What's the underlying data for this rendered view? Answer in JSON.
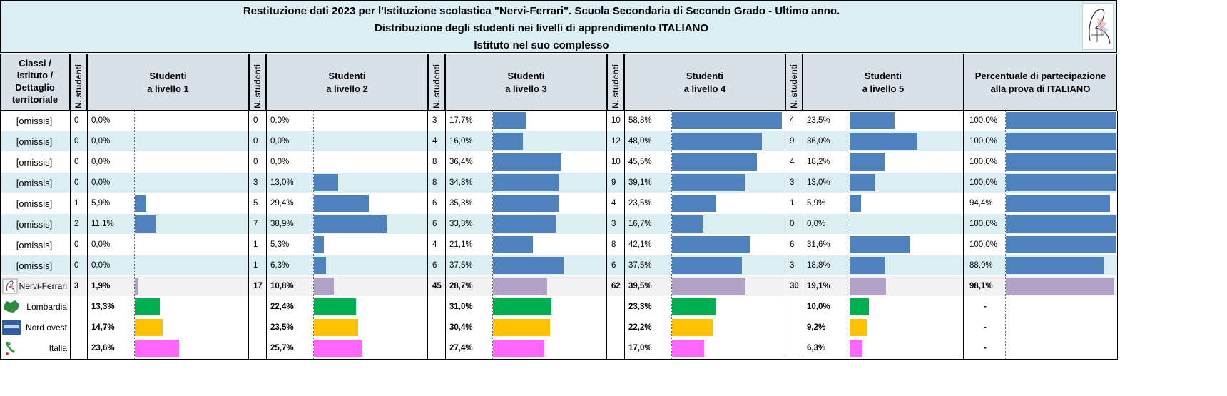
{
  "title": {
    "line1": "Restituzione dati 2023 per l'Istituzione scolastica \"Nervi-Ferrari\". Scuola Secondaria di Secondo Grado - Ultimo anno.",
    "line2": "Distribuzione degli studenti nei livelli di apprendimento ITALIANO",
    "line3": "Istituto nel suo complesso"
  },
  "headers": {
    "first_col": [
      "Classi /",
      "Istituto /",
      "Dettaglio",
      "territoriale"
    ],
    "n_studenti": "N. studenti",
    "levels": [
      [
        "Studenti",
        "a livello 1"
      ],
      [
        "Studenti",
        "a livello 2"
      ],
      [
        "Studenti",
        "a livello 3"
      ],
      [
        "Studenti",
        "a livello 4"
      ],
      [
        "Studenti",
        "a livello 5"
      ]
    ],
    "participation": [
      "Percentuale di partecipazione",
      "alla prova di ITALIANO"
    ]
  },
  "colors": {
    "class_bar": "#4f81bd",
    "school_bar": "#b3a2c7",
    "Lombardia": "#00b050",
    "Nord ovest": "#ffc000",
    "Italia": "#ff66ff",
    "row_alt": "#daeef3",
    "school_row": "#f2f2f2"
  },
  "chart_data": {
    "type": "table",
    "columns": [
      "Livello 1",
      "Livello 2",
      "Livello 3",
      "Livello 4",
      "Livello 5"
    ],
    "rows": [
      {
        "name": "[omissis]",
        "kind": "class",
        "n": [
          0,
          0,
          3,
          10,
          4
        ],
        "pct": [
          "0,0%",
          "0,0%",
          "17,7%",
          "58,8%",
          "23,5%"
        ],
        "pv": [
          0,
          0,
          17.7,
          58.8,
          23.5
        ],
        "part": "100,0%",
        "part_v": 100.0
      },
      {
        "name": "[omissis]",
        "kind": "class",
        "n": [
          0,
          0,
          4,
          12,
          9
        ],
        "pct": [
          "0,0%",
          "0,0%",
          "16,0%",
          "48,0%",
          "36,0%"
        ],
        "pv": [
          0,
          0,
          16.0,
          48.0,
          36.0
        ],
        "part": "100,0%",
        "part_v": 100.0
      },
      {
        "name": "[omissis]",
        "kind": "class",
        "n": [
          0,
          0,
          8,
          10,
          4
        ],
        "pct": [
          "0,0%",
          "0,0%",
          "36,4%",
          "45,5%",
          "18,2%"
        ],
        "pv": [
          0,
          0,
          36.4,
          45.5,
          18.2
        ],
        "part": "100,0%",
        "part_v": 100.0
      },
      {
        "name": "[omissis]",
        "kind": "class",
        "n": [
          0,
          3,
          8,
          9,
          3
        ],
        "pct": [
          "0,0%",
          "13,0%",
          "34,8%",
          "39,1%",
          "13,0%"
        ],
        "pv": [
          0,
          13.0,
          34.8,
          39.1,
          13.0
        ],
        "part": "100,0%",
        "part_v": 100.0
      },
      {
        "name": "[omissis]",
        "kind": "class",
        "n": [
          1,
          5,
          6,
          4,
          1
        ],
        "pct": [
          "5,9%",
          "29,4%",
          "35,3%",
          "23,5%",
          "5,9%"
        ],
        "pv": [
          5.9,
          29.4,
          35.3,
          23.5,
          5.9
        ],
        "part": "94,4%",
        "part_v": 94.4
      },
      {
        "name": "[omissis]",
        "kind": "class",
        "n": [
          2,
          7,
          6,
          3,
          0
        ],
        "pct": [
          "11,1%",
          "38,9%",
          "33,3%",
          "16,7%",
          "0,0%"
        ],
        "pv": [
          11.1,
          38.9,
          33.3,
          16.7,
          0
        ],
        "part": "100,0%",
        "part_v": 100.0
      },
      {
        "name": "[omissis]",
        "kind": "class",
        "n": [
          0,
          1,
          4,
          8,
          6
        ],
        "pct": [
          "0,0%",
          "5,3%",
          "21,1%",
          "42,1%",
          "31,6%"
        ],
        "pv": [
          0,
          5.3,
          21.1,
          42.1,
          31.6
        ],
        "part": "100,0%",
        "part_v": 100.0
      },
      {
        "name": "[omissis]",
        "kind": "class",
        "n": [
          0,
          1,
          6,
          6,
          3
        ],
        "pct": [
          "0,0%",
          "6,3%",
          "37,5%",
          "37,5%",
          "18,8%"
        ],
        "pv": [
          0,
          6.3,
          37.5,
          37.5,
          18.8
        ],
        "part": "88,9%",
        "part_v": 88.9
      },
      {
        "name": "Nervi-Ferrari",
        "kind": "school",
        "n": [
          3,
          17,
          45,
          62,
          30
        ],
        "pct": [
          "1,9%",
          "10,8%",
          "28,7%",
          "39,5%",
          "19,1%"
        ],
        "pv": [
          1.9,
          10.8,
          28.7,
          39.5,
          19.1
        ],
        "part": "98,1%",
        "part_v": 98.1
      },
      {
        "name": "Lombardia",
        "kind": "territory",
        "n": [
          "",
          "",
          "",
          "",
          ""
        ],
        "pct": [
          "13,3%",
          "22,4%",
          "31,0%",
          "23,3%",
          "10,0%"
        ],
        "pv": [
          13.3,
          22.4,
          31.0,
          23.3,
          10.0
        ],
        "part": "-",
        "part_v": 0
      },
      {
        "name": "Nord ovest",
        "kind": "territory",
        "n": [
          "",
          "",
          "",
          "",
          ""
        ],
        "pct": [
          "14,7%",
          "23,5%",
          "30,4%",
          "22,2%",
          "9,2%"
        ],
        "pv": [
          14.7,
          23.5,
          30.4,
          22.2,
          9.2
        ],
        "part": "-",
        "part_v": 0
      },
      {
        "name": "Italia",
        "kind": "territory",
        "n": [
          "",
          "",
          "",
          "",
          ""
        ],
        "pct": [
          "23,6%",
          "25,7%",
          "27,4%",
          "17,0%",
          "6,3%"
        ],
        "pv": [
          23.6,
          25.7,
          27.4,
          17.0,
          6.3
        ],
        "part": "-",
        "part_v": 0
      }
    ]
  }
}
